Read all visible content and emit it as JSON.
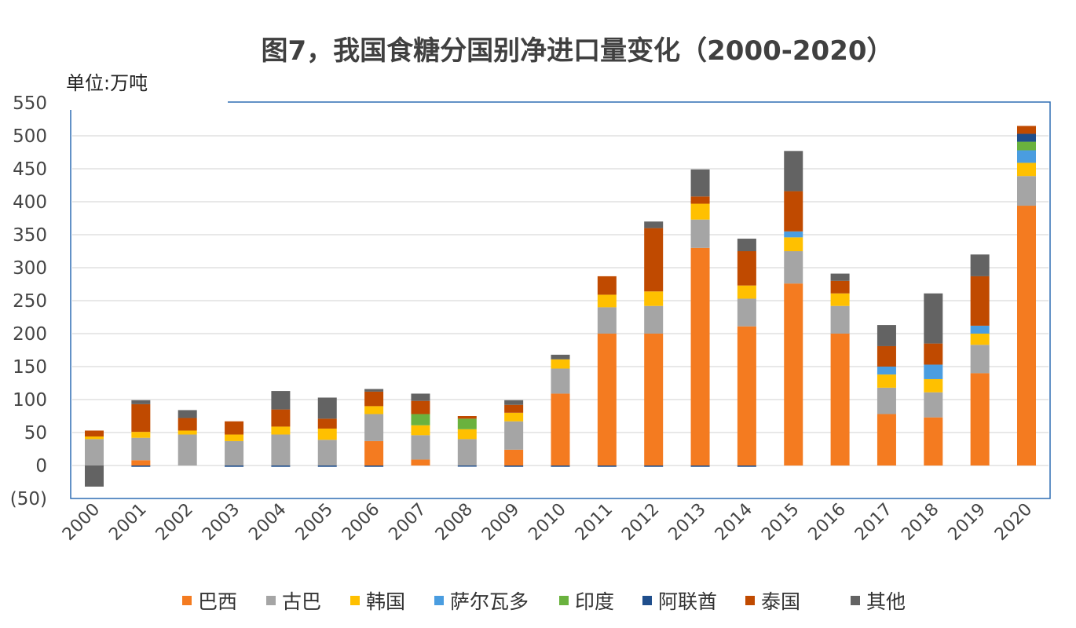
{
  "chart_data": {
    "type": "bar",
    "stacked": true,
    "title": "图7，我国食糖分国别净进口量变化（2000-2020）",
    "unit_label": "单位:万吨",
    "xlabel": "",
    "ylabel": "",
    "ylim": [
      -50,
      550
    ],
    "yticks": [
      550,
      500,
      450,
      400,
      350,
      300,
      250,
      200,
      150,
      100,
      50,
      0,
      -50
    ],
    "ytick_labels": [
      "550",
      "500",
      "450",
      "400",
      "350",
      "300",
      "250",
      "200",
      "150",
      "100",
      "50",
      "0",
      "(50)"
    ],
    "negative_label_color": "#e0201a",
    "grid": true,
    "legend_position": "bottom",
    "categories": [
      "2000",
      "2001",
      "2002",
      "2003",
      "2004",
      "2005",
      "2006",
      "2007",
      "2008",
      "2009",
      "2010",
      "2011",
      "2012",
      "2013",
      "2014",
      "2015",
      "2016",
      "2017",
      "2018",
      "2019",
      "2020"
    ],
    "series": [
      {
        "name": "巴西",
        "color": "#f47b20",
        "values": [
          0,
          8,
          0,
          0,
          0,
          0,
          37,
          9,
          0,
          24,
          109,
          200,
          200,
          330,
          211,
          276,
          200,
          78,
          73,
          140,
          394
        ]
      },
      {
        "name": "古巴",
        "color": "#a5a5a5",
        "values": [
          40,
          34,
          47,
          37,
          47,
          39,
          41,
          37,
          40,
          43,
          38,
          40,
          42,
          43,
          42,
          49,
          42,
          40,
          38,
          43,
          45
        ]
      },
      {
        "name": "韩国",
        "color": "#ffc000",
        "values": [
          4,
          9,
          6,
          10,
          12,
          17,
          12,
          15,
          15,
          13,
          14,
          19,
          22,
          24,
          20,
          21,
          19,
          20,
          20,
          17,
          20
        ]
      },
      {
        "name": "萨尔瓦多",
        "color": "#4a9de0",
        "values": [
          0,
          0,
          0,
          0,
          0,
          0,
          0,
          0,
          0,
          0,
          0,
          0,
          0,
          0,
          0,
          9,
          0,
          12,
          22,
          12,
          19
        ]
      },
      {
        "name": "印度",
        "color": "#6ab23e",
        "values": [
          0,
          0,
          0,
          0,
          0,
          0,
          0,
          17,
          16,
          0,
          0,
          0,
          0,
          0,
          0,
          0,
          0,
          0,
          0,
          0,
          13
        ]
      },
      {
        "name": "阿联酋",
        "color": "#1f4e8c",
        "values": [
          0,
          -2,
          0,
          -2,
          -2,
          -2,
          -2,
          0,
          -1,
          -2,
          -2,
          -2,
          -2,
          -2,
          -2,
          0,
          0,
          0,
          0,
          0,
          12
        ]
      },
      {
        "name": "泰国",
        "color": "#c04a00",
        "values": [
          9,
          42,
          19,
          20,
          26,
          15,
          22,
          20,
          4,
          12,
          0,
          28,
          96,
          11,
          52,
          61,
          19,
          31,
          32,
          75,
          12
        ]
      },
      {
        "name": "其他",
        "color": "#636363",
        "values": [
          -32,
          6,
          12,
          0,
          28,
          32,
          4,
          11,
          0,
          7,
          7,
          0,
          10,
          41,
          19,
          61,
          11,
          32,
          76,
          33,
          0
        ]
      }
    ]
  }
}
